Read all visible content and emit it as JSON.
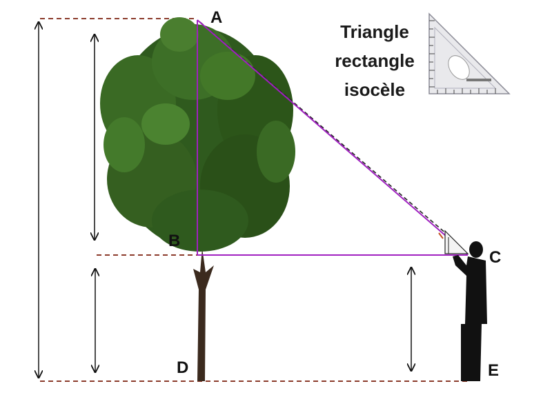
{
  "title": {
    "lines": [
      "Triangle",
      "rectangle",
      "isocèle"
    ]
  },
  "points": {
    "A": "A",
    "B": "B",
    "C": "C",
    "D": "D",
    "E": "E"
  },
  "colors": {
    "triangle": "#a020c0",
    "reference_lines": "#8b3a2a",
    "sightline": "#222222",
    "tree_foliage": "#2f5a1e",
    "tree_trunk": "#3b2a1e",
    "person": "#111111"
  },
  "icons": {
    "tree": "tree-illustration",
    "person": "person-illustration",
    "set_square": "set-square-ruler-icon"
  }
}
